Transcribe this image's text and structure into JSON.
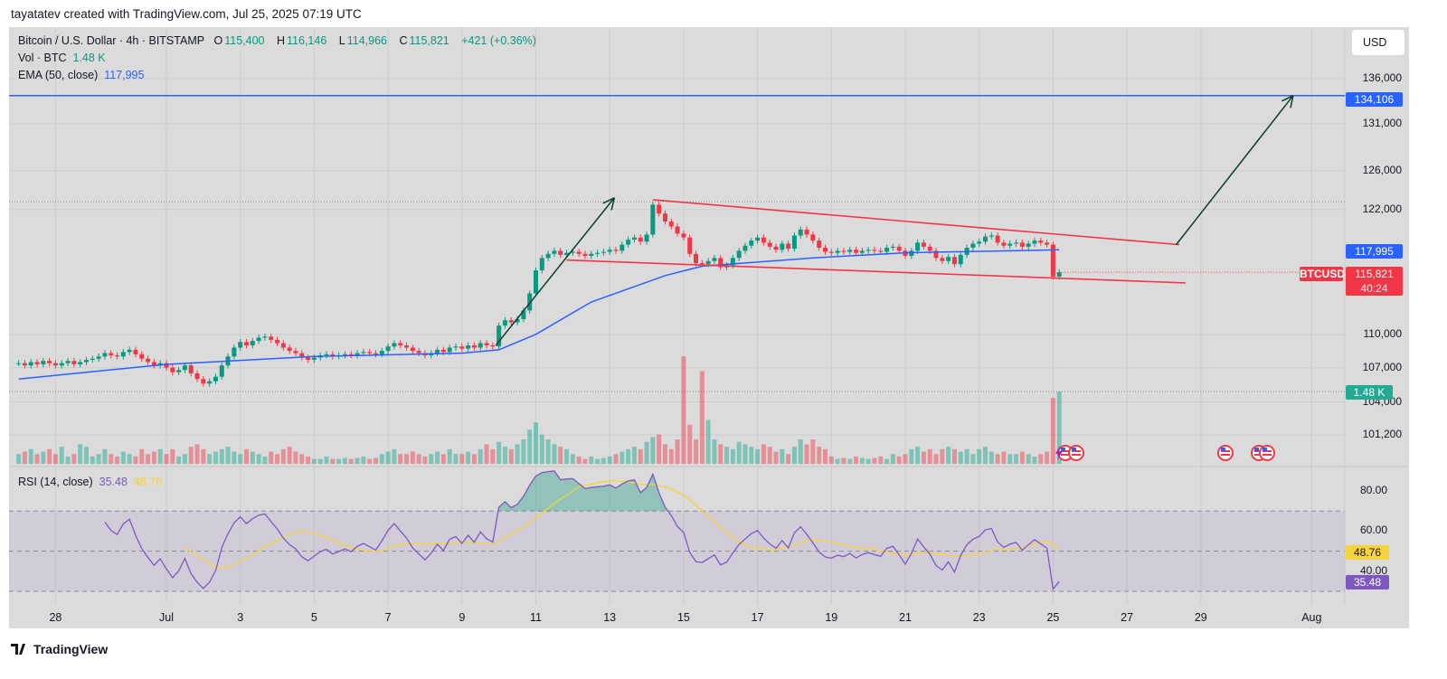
{
  "credit": "tayatatev created with TradingView.com, Jul 25, 2025 07:19 UTC",
  "legend": {
    "symbol": "Bitcoin / U.S. Dollar · 4h · BITSTAMP",
    "o_label": "O",
    "o": "115,400",
    "h_label": "H",
    "h": "116,146",
    "l_label": "L",
    "l": "114,966",
    "c_label": "C",
    "c": "115,821",
    "change": "+421 (+0.36%)",
    "vol_label": "Vol · BTC",
    "vol": "1.48 K",
    "ema_label": "EMA (50, close)",
    "ema": "117,995",
    "rsi_label": "RSI (14, close)",
    "rsi": "35.48",
    "rsi_ma": "48.76"
  },
  "currency_button": "USD",
  "price_axis": {
    "ticks": [
      "136,000",
      "131,000",
      "126,000",
      "122,000",
      "110,000",
      "107,000",
      "104,000",
      "101,200"
    ],
    "tick_values": [
      136000,
      131000,
      126000,
      122000,
      110000,
      107000,
      104000,
      101200
    ],
    "target_tag": "134,106",
    "ema_tag": "117,995",
    "symbol_tag": "BTCUSD",
    "price_tag": "115,821",
    "countdown": "40:24",
    "volume_tag": "1.48 K"
  },
  "rsi_axis": {
    "ticks": [
      "80.00",
      "60.00",
      "40.00"
    ],
    "tick_values": [
      80,
      60,
      40
    ],
    "ma_tag": "48.76",
    "rsi_tag": "35.48"
  },
  "time_axis": {
    "labels": [
      "28",
      "Jul",
      "3",
      "5",
      "7",
      "9",
      "11",
      "13",
      "15",
      "17",
      "19",
      "21",
      "23",
      "25",
      "27",
      "29",
      "Aug"
    ],
    "dates": [
      "2025-06-28",
      "2025-07-01",
      "2025-07-03",
      "2025-07-05",
      "2025-07-07",
      "2025-07-09",
      "2025-07-11",
      "2025-07-13",
      "2025-07-15",
      "2025-07-17",
      "2025-07-19",
      "2025-07-21",
      "2025-07-23",
      "2025-07-25",
      "2025-07-27",
      "2025-07-29",
      "2025-08-01"
    ]
  },
  "colors": {
    "up": "#089981",
    "down": "#f23645",
    "ema": "#2962ff",
    "rsi": "#7e57c2",
    "rsi_ma": "#f7d33a",
    "trendline": "#f23645",
    "arrow": "#0b3d2a",
    "target_line": "#2962ff"
  },
  "chart_data": {
    "type": "candlestick",
    "scale": "log",
    "interval": "4h",
    "start": "2025-06-27T00:00",
    "closes": [
      107400,
      107200,
      107500,
      107300,
      107600,
      107400,
      107200,
      107400,
      107600,
      107300,
      107500,
      107700,
      107800,
      108000,
      108300,
      108100,
      108000,
      108400,
      108600,
      108200,
      107800,
      107500,
      107200,
      107400,
      107000,
      106600,
      106800,
      107200,
      106500,
      106000,
      105600,
      105800,
      106200,
      107200,
      108000,
      108800,
      109300,
      109000,
      109400,
      109700,
      109800,
      109500,
      109200,
      108800,
      108500,
      108300,
      107900,
      107700,
      107900,
      108100,
      108200,
      108000,
      108100,
      108200,
      108100,
      108300,
      108400,
      108300,
      108200,
      108500,
      108900,
      109200,
      109000,
      108800,
      108500,
      108300,
      108100,
      108300,
      108600,
      108400,
      108800,
      108900,
      108700,
      109000,
      108800,
      109200,
      109000,
      108900,
      110800,
      111300,
      111100,
      111400,
      112200,
      113800,
      116000,
      117200,
      117600,
      117900,
      117500,
      117700,
      117800,
      117600,
      117400,
      117600,
      117700,
      117800,
      118000,
      117900,
      118500,
      119000,
      119200,
      118800,
      119500,
      122500,
      121600,
      120800,
      120300,
      119600,
      119200,
      117600,
      116700,
      116600,
      116900,
      117200,
      116300,
      116500,
      117200,
      117900,
      118400,
      118900,
      119200,
      118700,
      118300,
      118000,
      118600,
      118100,
      119400,
      120000,
      119500,
      118900,
      118200,
      117800,
      117700,
      117900,
      117800,
      118000,
      117700,
      117900,
      118000,
      117900,
      117800,
      118200,
      118300,
      117900,
      117400,
      117900,
      118700,
      118300,
      117900,
      117200,
      116900,
      117300,
      116600,
      117500,
      118200,
      118600,
      118800,
      119300,
      119400,
      118700,
      118400,
      118600,
      118700,
      118300,
      118600,
      118900,
      118700,
      118500,
      115400,
      115821
    ],
    "volumes_k": [
      0.2,
      0.25,
      0.3,
      0.2,
      0.25,
      0.3,
      0.2,
      0.35,
      0.15,
      0.2,
      0.4,
      0.35,
      0.15,
      0.2,
      0.3,
      0.2,
      0.15,
      0.25,
      0.2,
      0.15,
      0.3,
      0.2,
      0.25,
      0.3,
      0.2,
      0.3,
      0.15,
      0.2,
      0.35,
      0.4,
      0.3,
      0.2,
      0.25,
      0.3,
      0.35,
      0.25,
      0.2,
      0.3,
      0.25,
      0.2,
      0.15,
      0.25,
      0.2,
      0.3,
      0.35,
      0.25,
      0.2,
      0.15,
      0.1,
      0.1,
      0.15,
      0.1,
      0.1,
      0.12,
      0.1,
      0.12,
      0.15,
      0.1,
      0.12,
      0.2,
      0.25,
      0.3,
      0.2,
      0.2,
      0.25,
      0.2,
      0.15,
      0.2,
      0.25,
      0.2,
      0.3,
      0.2,
      0.2,
      0.25,
      0.2,
      0.3,
      0.4,
      0.3,
      0.45,
      0.35,
      0.3,
      0.4,
      0.5,
      0.7,
      0.85,
      0.6,
      0.5,
      0.4,
      0.35,
      0.3,
      0.2,
      0.15,
      0.1,
      0.15,
      0.1,
      0.12,
      0.15,
      0.2,
      0.25,
      0.3,
      0.35,
      0.3,
      0.45,
      0.55,
      0.6,
      0.4,
      0.3,
      0.5,
      2.2,
      0.8,
      0.5,
      1.9,
      0.9,
      0.5,
      0.4,
      0.35,
      0.3,
      0.45,
      0.4,
      0.35,
      0.3,
      0.4,
      0.35,
      0.25,
      0.3,
      0.2,
      0.35,
      0.5,
      0.4,
      0.5,
      0.35,
      0.3,
      0.15,
      0.1,
      0.12,
      0.1,
      0.15,
      0.12,
      0.1,
      0.12,
      0.15,
      0.1,
      0.2,
      0.15,
      0.2,
      0.3,
      0.35,
      0.25,
      0.3,
      0.2,
      0.3,
      0.35,
      0.3,
      0.25,
      0.3,
      0.2,
      0.3,
      0.35,
      0.25,
      0.2,
      0.25,
      0.2,
      0.2,
      0.25,
      0.2,
      0.15,
      0.2,
      0.25,
      1.35,
      1.48
    ],
    "ema50": [
      [
        "2025-06-27T00:00",
        106000
      ],
      [
        "2025-07-01T00:00",
        107300
      ],
      [
        "2025-07-05T00:00",
        108000
      ],
      [
        "2025-07-09T00:00",
        108300
      ],
      [
        "2025-07-10T00:00",
        108600
      ],
      [
        "2025-07-11T00:00",
        110000
      ],
      [
        "2025-07-12T12:00",
        113000
      ],
      [
        "2025-07-14T12:00",
        115500
      ],
      [
        "2025-07-15T12:00",
        116400
      ],
      [
        "2025-07-18T12:00",
        117200
      ],
      [
        "2025-07-21T00:00",
        117700
      ],
      [
        "2025-07-25T04:00",
        117995
      ]
    ],
    "rsi_period": 14,
    "rsi_levels": [
      70,
      50,
      30
    ],
    "horizontal_line": 134106,
    "trendlines": [
      {
        "from": [
          "2025-07-14T04:00",
          123000
        ],
        "to": [
          "2025-07-28T10:00",
          118500
        ]
      },
      {
        "from": [
          "2025-07-11T20:00",
          117000
        ],
        "to": [
          "2025-07-28T14:00",
          114800
        ]
      }
    ],
    "arrows": [
      {
        "from": [
          "2025-07-09T22:00",
          109000
        ],
        "to": [
          "2025-07-13T03:00",
          123200
        ]
      },
      {
        "from": [
          "2025-07-28T08:00",
          118500
        ],
        "to": [
          "2025-07-31T12:00",
          134106
        ]
      }
    ],
    "dotted_levels": [
      122800,
      104900
    ]
  },
  "events": [
    "us-flag-icon",
    "us-flag-icon",
    "us-flag-icon",
    "us-flag-icon"
  ],
  "footer": {
    "brand": "TradingView"
  }
}
